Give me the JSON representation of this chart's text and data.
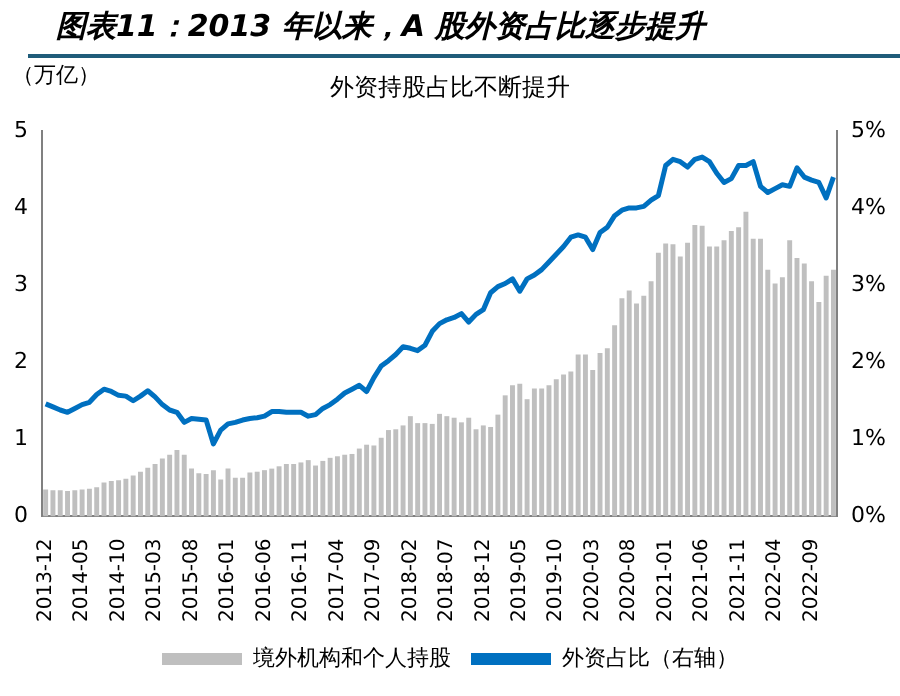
{
  "chart_data": {
    "type": "bar",
    "title": "图表11：2013 年以来，A 股外资占比逐步提升",
    "subtitle": "外资持股占比不断提升",
    "ylabel": "（万亿）",
    "categories": [
      "2013-12",
      null,
      null,
      null,
      null,
      "2014-05",
      null,
      null,
      null,
      null,
      "2014-10",
      null,
      null,
      null,
      null,
      "2015-03",
      null,
      null,
      null,
      null,
      "2015-08",
      null,
      null,
      null,
      null,
      "2016-01",
      null,
      null,
      null,
      null,
      "2016-06",
      null,
      null,
      null,
      null,
      "2016-11",
      null,
      null,
      null,
      null,
      "2017-04",
      null,
      null,
      null,
      null,
      "2017-09",
      null,
      null,
      null,
      null,
      "2018-02",
      null,
      null,
      null,
      null,
      "2018-07",
      null,
      null,
      null,
      null,
      "2018-12",
      null,
      null,
      null,
      null,
      "2019-05",
      null,
      null,
      null,
      null,
      "2019-10",
      null,
      null,
      null,
      null,
      "2020-03",
      null,
      null,
      null,
      null,
      "2020-08",
      null,
      null,
      null,
      null,
      "2021-01",
      null,
      null,
      null,
      null,
      "2021-06",
      null,
      null,
      null,
      null,
      "2021-11",
      null,
      null,
      null,
      null,
      "2022-04",
      null,
      null,
      null,
      null,
      "2022-09",
      null,
      null,
      null
    ],
    "series": [
      {
        "name": "境外机构和个人持股",
        "color": "#bfbfbf",
        "values": [
          0.35,
          0.34,
          0.34,
          0.33,
          0.34,
          0.35,
          0.36,
          0.38,
          0.44,
          0.46,
          0.47,
          0.49,
          0.53,
          0.58,
          0.63,
          0.68,
          0.75,
          0.8,
          0.86,
          0.8,
          0.62,
          0.56,
          0.55,
          0.6,
          0.48,
          0.62,
          0.5,
          0.5,
          0.57,
          0.58,
          0.6,
          0.62,
          0.65,
          0.68,
          0.68,
          0.7,
          0.73,
          0.66,
          0.72,
          0.76,
          0.78,
          0.8,
          0.81,
          0.88,
          0.93,
          0.92,
          1.02,
          1.12,
          1.13,
          1.18,
          1.3,
          1.21,
          1.21,
          1.2,
          1.33,
          1.3,
          1.28,
          1.22,
          1.28,
          1.13,
          1.18,
          1.16,
          1.32,
          1.57,
          1.7,
          1.72,
          1.52,
          1.66,
          1.66,
          1.7,
          1.78,
          1.84,
          1.88,
          2.1,
          2.1,
          1.9,
          2.12,
          2.18,
          2.48,
          2.83,
          2.93,
          2.76,
          2.86,
          3.05,
          3.42,
          3.54,
          3.53,
          3.37,
          3.55,
          3.78,
          3.77,
          3.5,
          3.5,
          3.58,
          3.7,
          3.75,
          3.95,
          3.6,
          3.6,
          3.2,
          3.02,
          3.1,
          3.58,
          3.35,
          3.28,
          3.05,
          2.78,
          3.12,
          3.2
        ]
      },
      {
        "name": "外资占比（右轴）",
        "type": "line",
        "axis": "y2",
        "color": "#0070c0",
        "values": [
          1.46,
          1.42,
          1.38,
          1.35,
          1.4,
          1.45,
          1.48,
          1.58,
          1.65,
          1.62,
          1.57,
          1.56,
          1.5,
          1.56,
          1.63,
          1.55,
          1.45,
          1.38,
          1.35,
          1.22,
          1.27,
          1.26,
          1.25,
          0.94,
          1.12,
          1.2,
          1.22,
          1.25,
          1.27,
          1.28,
          1.3,
          1.36,
          1.36,
          1.35,
          1.35,
          1.35,
          1.3,
          1.32,
          1.4,
          1.45,
          1.52,
          1.6,
          1.65,
          1.7,
          1.62,
          1.8,
          1.95,
          2.02,
          2.1,
          2.2,
          2.18,
          2.15,
          2.22,
          2.4,
          2.5,
          2.55,
          2.58,
          2.63,
          2.52,
          2.62,
          2.68,
          2.9,
          2.98,
          3.02,
          3.08,
          2.92,
          3.08,
          3.13,
          3.2,
          3.3,
          3.4,
          3.5,
          3.62,
          3.65,
          3.62,
          3.46,
          3.68,
          3.75,
          3.9,
          3.97,
          4.0,
          4.0,
          4.02,
          4.1,
          4.16,
          4.55,
          4.63,
          4.6,
          4.53,
          4.63,
          4.66,
          4.6,
          4.45,
          4.33,
          4.38,
          4.55,
          4.55,
          4.6,
          4.28,
          4.2,
          4.25,
          4.3,
          4.28,
          4.52,
          4.4,
          4.36,
          4.33,
          4.13,
          4.4
        ]
      }
    ],
    "ylim": [
      0,
      5
    ],
    "yticks": [
      0,
      1,
      2,
      3,
      4,
      5
    ],
    "y2lim": [
      0,
      5
    ],
    "y2ticks": [
      {
        "value": 0,
        "label": "0%"
      },
      {
        "value": 1,
        "label": "1%"
      },
      {
        "value": 2,
        "label": "2%"
      },
      {
        "value": 3,
        "label": "3%"
      },
      {
        "value": 4,
        "label": "4%"
      },
      {
        "value": 5,
        "label": "5%"
      }
    ],
    "grid": false,
    "legend": "bottom",
    "marker": "none"
  }
}
